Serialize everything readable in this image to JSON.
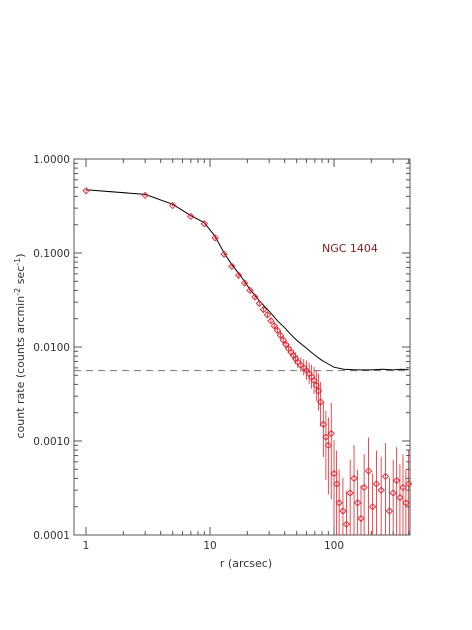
{
  "chart_data": {
    "type": "scatter",
    "xscale": "log",
    "yscale": "log",
    "xlim": [
      0.8,
      410
    ],
    "ylim": [
      0.0001,
      1.0
    ],
    "xlabel": "r (arcsec)",
    "ylabel": "count rate (counts arcmin",
    "ylabel_sup": "-2",
    "ylabel_mid": " sec",
    "ylabel_sup2": "-1",
    "ylabel_end": ")",
    "x_ticks": [
      1,
      10,
      100
    ],
    "x_tick_labels": [
      "1",
      "10",
      "100"
    ],
    "y_ticks": [
      1.0,
      0.1,
      0.01,
      0.001,
      0.0001
    ],
    "y_tick_labels": [
      "1.0000",
      "0.1000",
      "0.0100",
      "0.0010",
      "0.0001"
    ],
    "annotation": "NGC 1404",
    "background_level": 0.0056,
    "colors": {
      "total_profile": "#000000",
      "subtracted_profile": "#e8202a",
      "annotation": "#8b1a1a",
      "background_line": "#777777",
      "axes": "#555555"
    },
    "series": [
      {
        "role": "total profile (black line)",
        "x": [
          1,
          3,
          5,
          7,
          9,
          11,
          13,
          15,
          18,
          21,
          25,
          30,
          35,
          40,
          45,
          50,
          60,
          70,
          80,
          90,
          100,
          120,
          150,
          200,
          250,
          300,
          350,
          400
        ],
        "y": [
          0.47,
          0.42,
          0.33,
          0.25,
          0.21,
          0.15,
          0.1,
          0.075,
          0.055,
          0.041,
          0.031,
          0.024,
          0.019,
          0.016,
          0.0135,
          0.0118,
          0.0097,
          0.0082,
          0.0072,
          0.0066,
          0.0061,
          0.0058,
          0.0057,
          0.0057,
          0.0058,
          0.0057,
          0.0058,
          0.0057
        ]
      },
      {
        "role": "background-subtracted profile (red diamonds)",
        "x": [
          1,
          3,
          5,
          7,
          9,
          11,
          13,
          15,
          17,
          19,
          21,
          23,
          25,
          27,
          29,
          31,
          33,
          35,
          37,
          39,
          41,
          43,
          45,
          47,
          49,
          51,
          54,
          57,
          60,
          63,
          66,
          69,
          72,
          75,
          78,
          82,
          86,
          90,
          95,
          100,
          105,
          110,
          118,
          126,
          135,
          145,
          155,
          165,
          175,
          190,
          205,
          220,
          240,
          260,
          280,
          300,
          320,
          340,
          360,
          380,
          400
        ],
        "y": [
          0.46,
          0.41,
          0.32,
          0.245,
          0.205,
          0.145,
          0.097,
          0.072,
          0.058,
          0.048,
          0.04,
          0.034,
          0.029,
          0.025,
          0.022,
          0.019,
          0.0168,
          0.015,
          0.0133,
          0.0118,
          0.0106,
          0.0096,
          0.0088,
          0.0081,
          0.0075,
          0.0069,
          0.0064,
          0.006,
          0.0056,
          0.0052,
          0.0048,
          0.0044,
          0.0039,
          0.0034,
          0.0026,
          0.0015,
          0.0011,
          0.0009,
          0.0012,
          0.00045,
          0.00035,
          0.00022,
          0.00018,
          0.00013,
          0.00028,
          0.0004,
          0.00022,
          0.00015,
          0.00032,
          0.00048,
          0.0002,
          0.00035,
          0.0003,
          0.00042,
          0.00018,
          0.00028,
          0.00038,
          0.00025,
          0.00032,
          0.00022,
          0.00035
        ],
        "err_frac": [
          0.02,
          0.02,
          0.02,
          0.02,
          0.02,
          0.03,
          0.03,
          0.03,
          0.04,
          0.04,
          0.04,
          0.05,
          0.05,
          0.05,
          0.06,
          0.06,
          0.07,
          0.07,
          0.08,
          0.08,
          0.09,
          0.1,
          0.1,
          0.11,
          0.12,
          0.13,
          0.15,
          0.17,
          0.2,
          0.22,
          0.25,
          0.28,
          0.32,
          0.38,
          0.45,
          0.55,
          0.65,
          0.7,
          0.8,
          0.9,
          0.9,
          0.9,
          0.9,
          0.9,
          0.9,
          0.9,
          0.9,
          0.9,
          0.9,
          0.9,
          0.9,
          0.9,
          0.9,
          0.9,
          0.9,
          0.9,
          0.9,
          0.9,
          0.9,
          0.9,
          0.9
        ]
      }
    ]
  }
}
